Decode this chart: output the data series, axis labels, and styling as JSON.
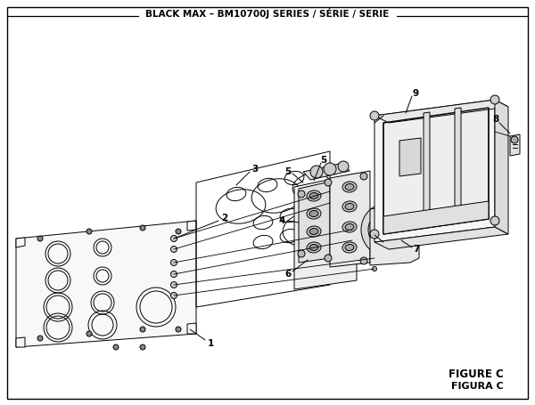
{
  "title": "BLACK MAX – BM10700J SERIES / SÉRIE / SERIE",
  "figure_label": "FIGURE C",
  "figura_label": "FIGURA C",
  "bg_color": "#ffffff",
  "line_color": "#000000",
  "text_color": "#000000",
  "title_fontsize": 7.5,
  "label_fontsize": 7.5,
  "figure_label_fontsize": 8.5
}
